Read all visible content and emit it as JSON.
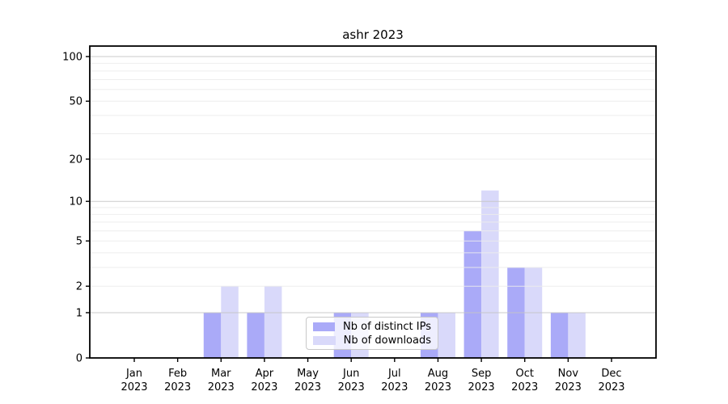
{
  "title": "ashr 2023",
  "chart_data": {
    "type": "bar",
    "categories": [
      "Jan",
      "Feb",
      "Mar",
      "Apr",
      "May",
      "Jun",
      "Jul",
      "Aug",
      "Sep",
      "Oct",
      "Nov",
      "Dec"
    ],
    "year_label": "2023",
    "series": [
      {
        "name": "Nb of distinct IPs",
        "color": "#aaaaf8",
        "values": [
          0,
          0,
          1,
          1,
          0,
          1,
          0,
          1,
          6,
          3,
          1,
          0
        ]
      },
      {
        "name": "Nb of downloads",
        "color": "#d9d9fa",
        "values": [
          0,
          0,
          2,
          2,
          0,
          1,
          0,
          1,
          12,
          3,
          1,
          0
        ]
      }
    ],
    "yscale": "log1p",
    "ytick_values": [
      0,
      1,
      2,
      5,
      10,
      20,
      50,
      100
    ],
    "ylim": [
      0,
      118
    ],
    "grid": {
      "major_values": [
        1,
        10,
        100
      ],
      "minor_values": [
        2,
        3,
        4,
        5,
        6,
        7,
        8,
        9,
        20,
        30,
        40,
        50,
        60,
        70,
        80,
        90
      ],
      "major_color": "#c6c6c6",
      "minor_color": "#ececec"
    },
    "legend_position": "lower-center",
    "spine_color": "#000000",
    "tick_color": "#000000",
    "label_color": "#000000"
  }
}
